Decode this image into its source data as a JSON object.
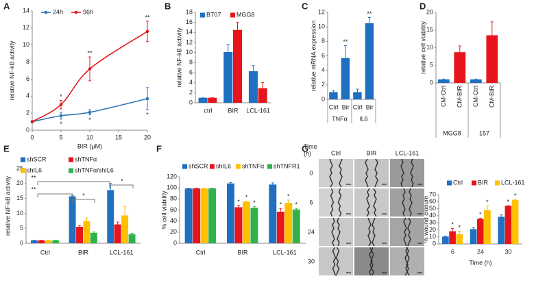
{
  "chart_data": [
    {
      "type": "line",
      "label": "A",
      "xlabel": "BIR (μM)",
      "ylabel": "relative NF-kB activity",
      "xlim": [
        0,
        20
      ],
      "xticks": [
        0,
        5,
        10,
        15,
        20
      ],
      "ylim": [
        0,
        14
      ],
      "yticks": [
        0,
        2,
        4,
        6,
        8,
        10,
        12,
        14
      ],
      "x": [
        0,
        5,
        10,
        20
      ],
      "series": [
        {
          "name": "24h",
          "color": "#2e75b6",
          "values": [
            1,
            1.7,
            2.1,
            3.7
          ],
          "errors": [
            0.1,
            0.4,
            0.3,
            1.3
          ],
          "significance": [
            null,
            "*",
            "*",
            "*"
          ]
        },
        {
          "name": "96h",
          "color": "#e31a1c",
          "values": [
            1,
            3,
            7.2,
            11.6
          ],
          "errors": [
            0.1,
            0.5,
            1.4,
            1.2
          ],
          "significance": [
            null,
            "*",
            "**",
            "**"
          ]
        }
      ]
    },
    {
      "type": "bar",
      "label": "B",
      "ylabel": "relative NF-kB activity",
      "ylim": [
        0,
        18
      ],
      "yticks": [
        0,
        2,
        4,
        6,
        8,
        10,
        12,
        14,
        16,
        18
      ],
      "categories": [
        "ctrl",
        "BIR",
        "LCL-161"
      ],
      "series": [
        {
          "name": "BT07",
          "color": "#1f70c1",
          "values": [
            1,
            10.1,
            6.3
          ],
          "errors": [
            0,
            1.5,
            1.1
          ]
        },
        {
          "name": "MGG8",
          "color": "#e8141c",
          "values": [
            1,
            14.5,
            2.9
          ],
          "errors": [
            0,
            1.5,
            1.1
          ]
        }
      ]
    },
    {
      "type": "bar",
      "label": "C",
      "ylabel": "relative mRNA expression",
      "ylim": [
        0,
        12
      ],
      "yticks": [
        0,
        2,
        4,
        6,
        8,
        10,
        12
      ],
      "categories": [
        "Ctrl",
        "Bir",
        "Ctrl",
        "Bir"
      ],
      "groups": [
        "TNFα",
        "IL6"
      ],
      "values": [
        1,
        5.7,
        1,
        10.5
      ],
      "errors": [
        0.2,
        1.7,
        0.4,
        0.8
      ],
      "colors": [
        "#1f70c1",
        "#1f70c1",
        "#1f70c1",
        "#1f70c1"
      ],
      "significance": [
        null,
        "**",
        null,
        "**"
      ]
    },
    {
      "type": "bar",
      "label": "D",
      "ylabel": "relative cell viability",
      "ylim": [
        0,
        20
      ],
      "yticks": [
        0,
        5,
        10,
        15,
        20
      ],
      "categories": [
        "CM-Ctrl",
        "CM-BIR",
        "CM-Ctrl",
        "CM-BIR"
      ],
      "groups": [
        "MGG8",
        "157"
      ],
      "values": [
        1,
        8.7,
        1,
        13.5
      ],
      "errors": [
        0.1,
        1.8,
        0.1,
        3.8
      ],
      "colors": [
        "#1f70c1",
        "#e8141c",
        "#1f70c1",
        "#e8141c"
      ]
    },
    {
      "type": "bar",
      "label": "E",
      "ylabel": "relative NF-kB activity",
      "ylim": [
        0,
        25
      ],
      "yticks": [
        0,
        5,
        10,
        15,
        20,
        25
      ],
      "categories": [
        "Ctrl",
        "BIR",
        "LCL-161"
      ],
      "series": [
        {
          "name": "shSCR",
          "color": "#1f70c1",
          "values": [
            1,
            15.7,
            17.8
          ],
          "errors": [
            0,
            0.2,
            2.2
          ]
        },
        {
          "name": "shTNFα",
          "color": "#e8141c",
          "values": [
            1,
            5.5,
            6.3
          ],
          "errors": [
            0,
            0.5,
            0.8
          ]
        },
        {
          "name": "shIL6",
          "color": "#ffc000",
          "values": [
            1,
            7.4,
            9.3
          ],
          "errors": [
            0,
            1.1,
            3
          ]
        },
        {
          "name": "shTNFα/shIL6",
          "color": "#2fb24c",
          "values": [
            1,
            3.5,
            3
          ],
          "errors": [
            0,
            0.3,
            0.3
          ]
        }
      ],
      "brackets": [
        "**",
        "**",
        "*",
        "*"
      ]
    },
    {
      "type": "bar",
      "label": "F",
      "ylabel": "% cell viability",
      "ylim": [
        0,
        120
      ],
      "yticks": [
        0,
        20,
        40,
        60,
        80,
        100,
        120
      ],
      "categories": [
        "Ctrl",
        "BIR",
        "LCL-161"
      ],
      "series": [
        {
          "name": "shSCR",
          "color": "#1f70c1",
          "values": [
            99,
            108,
            106
          ],
          "errors": [
            0.5,
            1.5,
            3
          ]
        },
        {
          "name": "shIL6",
          "color": "#e8141c",
          "values": [
            99,
            65,
            57
          ],
          "errors": [
            0.5,
            3,
            6
          ],
          "significance": [
            null,
            "*",
            "*"
          ]
        },
        {
          "name": "shTNFα",
          "color": "#ffc000",
          "values": [
            99,
            75,
            73
          ],
          "errors": [
            0.5,
            1,
            5
          ],
          "significance": [
            null,
            "*",
            "*"
          ]
        },
        {
          "name": "shTNFR1",
          "color": "#2fb24c",
          "values": [
            99,
            64,
            61
          ],
          "errors": [
            0.5,
            2,
            2
          ],
          "significance": [
            null,
            "*",
            "*"
          ]
        }
      ]
    },
    {
      "type": "bar",
      "label": "G",
      "xlabel": "Time (h)",
      "ylabel": "% wound closure",
      "ylim": [
        0,
        70
      ],
      "yticks": [
        0,
        10,
        20,
        30,
        40,
        50,
        60,
        70
      ],
      "categories": [
        "6",
        "24",
        "30"
      ],
      "series": [
        {
          "name": "Ctrl",
          "color": "#1f70c1",
          "values": [
            10.5,
            21,
            38.5
          ],
          "errors": [
            0.5,
            2.5,
            3
          ]
        },
        {
          "name": "BIR",
          "color": "#e8141c",
          "values": [
            18,
            35.5,
            54
          ],
          "errors": [
            4,
            1,
            0.5
          ],
          "significance": [
            "*",
            "*",
            "*"
          ]
        },
        {
          "name": "LCL-161",
          "color": "#ffc000",
          "values": [
            14,
            48,
            62.5
          ],
          "errors": [
            4,
            6,
            0.5
          ],
          "significance": [
            "*",
            "*",
            "*"
          ]
        }
      ],
      "image_row_title": "Time (h)",
      "image_columns": [
        "Ctrl",
        "BIR",
        "LCL-161"
      ],
      "image_rows": [
        "0",
        "6",
        "24",
        "30"
      ]
    }
  ]
}
